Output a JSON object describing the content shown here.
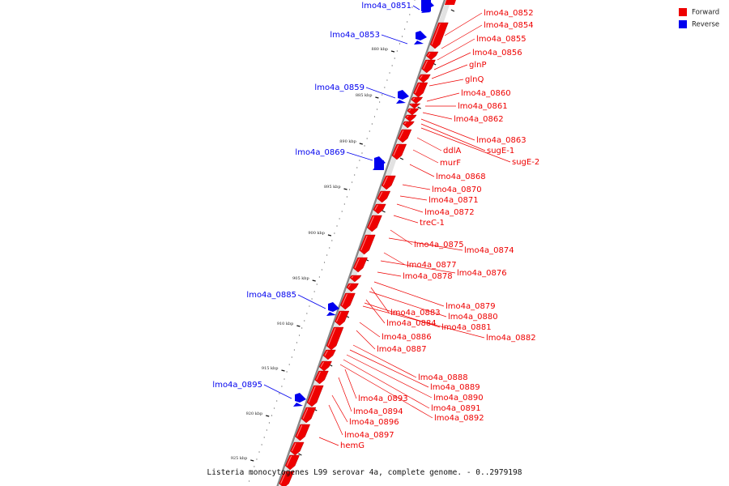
{
  "caption": "Listeria monocytogenes L99 serovar 4a, complete genome. - 0..2979198",
  "legend": [
    {
      "label": "Forward",
      "color": "#ee0000"
    },
    {
      "label": "Reverse",
      "color": "#0000ee"
    }
  ],
  "colors": {
    "forward": "#ee0000",
    "reverse": "#0000ee",
    "backbone": "#888888"
  },
  "ticks": [
    "880 kbp",
    "885 kbp",
    "890 kbp",
    "895 kbp",
    "900 kbp",
    "905 kbp",
    "910 kbp",
    "915 kbp",
    "920 kbp",
    "925 kbp"
  ],
  "reverse_genes": [
    "lmo4a_0851",
    "lmo4a_0853",
    "lmo4a_0859",
    "lmo4a_0869",
    "lmo4a_0885",
    "lmo4a_0895"
  ],
  "forward_genes": [
    "lmo4a_0852",
    "lmo4a_0854",
    "lmo4a_0855",
    "lmo4a_0856",
    "glnP",
    "glnQ",
    "lmo4a_0860",
    "lmo4a_0861",
    "lmo4a_0862",
    "lmo4a_0863",
    "sugE-1",
    "sugE-2",
    "ddlA",
    "murF",
    "lmo4a_0868",
    "lmo4a_0870",
    "lmo4a_0871",
    "lmo4a_0872",
    "treC-1",
    "lmo4a_0875",
    "lmo4a_0874",
    "lmo4a_0877",
    "lmo4a_0876",
    "lmo4a_0878",
    "lmo4a_0879",
    "lmo4a_0883",
    "lmo4a_0880",
    "lmo4a_0884",
    "lmo4a_0881",
    "lmo4a_0882",
    "lmo4a_0886",
    "lmo4a_0887",
    "lmo4a_0888",
    "lmo4a_0889",
    "lmo4a_0890",
    "lmo4a_0893",
    "lmo4a_0891",
    "lmo4a_0894",
    "lmo4a_0892",
    "lmo4a_0896",
    "lmo4a_0897",
    "hemG"
  ]
}
